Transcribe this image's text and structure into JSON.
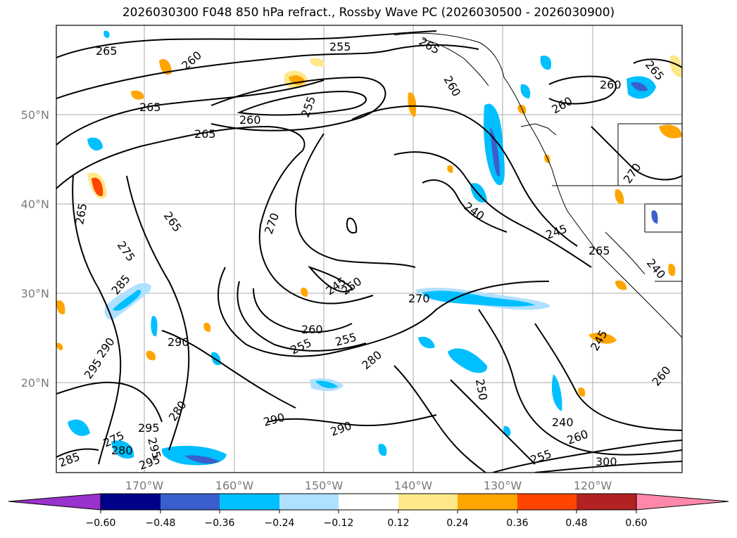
{
  "title": "2026030300 F048 850 hPa refract., Rossby Wave PC (2026030500 - 2026030900)",
  "lat_labels": [
    "50°N",
    "40°N",
    "30°N",
    "20°N"
  ],
  "lon_labels": [
    "170°W",
    "160°W",
    "150°W",
    "140°W",
    "130°W",
    "120°W"
  ],
  "contour_labels": [
    "265",
    "260",
    "255",
    "265",
    "260",
    "255",
    "265",
    "260",
    "265",
    "260",
    "265",
    "260",
    "270",
    "265",
    "265",
    "275",
    "270",
    "240",
    "245",
    "265",
    "240",
    "285",
    "245",
    "250",
    "270",
    "260",
    "255",
    "255",
    "290",
    "280",
    "290",
    "295",
    "250",
    "245",
    "280",
    "295",
    "290",
    "290",
    "240",
    "275",
    "295",
    "280",
    "285",
    "295",
    "255",
    "260",
    "260",
    "300"
  ],
  "colorbar": {
    "colors": [
      "#9932cc",
      "#00008b",
      "#3a5fcd",
      "#00bfff",
      "#b0e0ff",
      "#ffffff",
      "#ffe88a",
      "#ffa500",
      "#ff4500",
      "#b22222",
      "#ff88aa"
    ],
    "ticks": [
      "−0.60",
      "−0.48",
      "−0.36",
      "−0.24",
      "−0.12",
      "0.12",
      "0.24",
      "0.36",
      "0.48",
      "0.60"
    ]
  }
}
